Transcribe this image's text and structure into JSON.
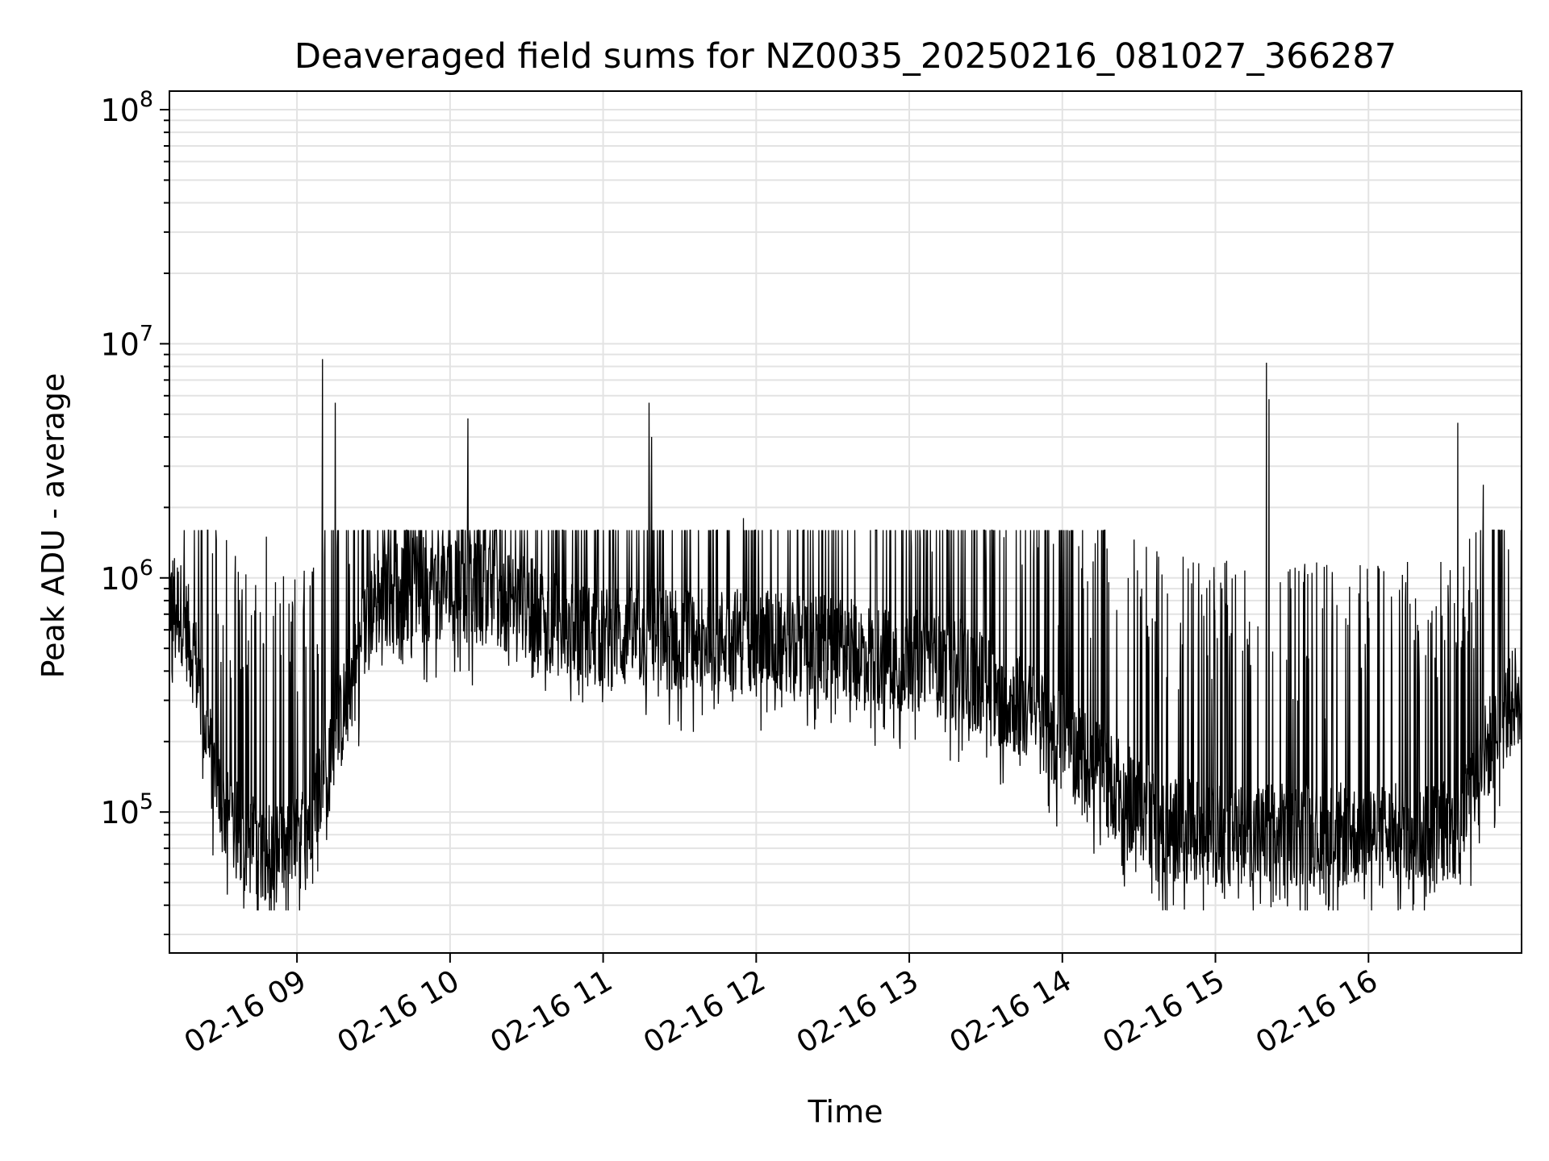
{
  "chart_data": {
    "type": "line",
    "title": "Deaveraged field sums for NZ0035_20250216_081027_366287",
    "xlabel": "Time",
    "ylabel": "Peak ADU - average",
    "y_scale": "log",
    "ylim": [
      25000,
      120000000
    ],
    "y_ticks": [
      {
        "value": 100000,
        "base": "10",
        "exp": "5"
      },
      {
        "value": 1000000,
        "base": "10",
        "exp": "6"
      },
      {
        "value": 10000000,
        "base": "10",
        "exp": "7"
      },
      {
        "value": 100000000,
        "base": "10",
        "exp": "8"
      }
    ],
    "xlim": [
      "2025-02-16T08:10",
      "2025-02-16T17:00"
    ],
    "x_ticks": [
      {
        "time": "2025-02-16T09:00",
        "label": "02-16 09"
      },
      {
        "time": "2025-02-16T10:00",
        "label": "02-16 10"
      },
      {
        "time": "2025-02-16T11:00",
        "label": "02-16 11"
      },
      {
        "time": "2025-02-16T12:00",
        "label": "02-16 12"
      },
      {
        "time": "2025-02-16T13:00",
        "label": "02-16 13"
      },
      {
        "time": "2025-02-16T14:00",
        "label": "02-16 14"
      },
      {
        "time": "2025-02-16T15:00",
        "label": "02-16 15"
      },
      {
        "time": "2025-02-16T16:00",
        "label": "02-16 16"
      }
    ],
    "grid": true,
    "line_color": "#000000",
    "series": [
      {
        "baseline": {
          "time": [
            "2025-02-16T08:10",
            "2025-02-16T08:15",
            "2025-02-16T08:20",
            "2025-02-16T08:25",
            "2025-02-16T08:30",
            "2025-02-16T08:35",
            "2025-02-16T08:40",
            "2025-02-16T08:45",
            "2025-02-16T08:50",
            "2025-02-16T08:55",
            "2025-02-16T09:00",
            "2025-02-16T09:15",
            "2025-02-16T09:30",
            "2025-02-16T09:45",
            "2025-02-16T10:00",
            "2025-02-16T10:15",
            "2025-02-16T10:30",
            "2025-02-16T10:45",
            "2025-02-16T11:00",
            "2025-02-16T11:30",
            "2025-02-16T12:00",
            "2025-02-16T12:30",
            "2025-02-16T13:00",
            "2025-02-16T13:20",
            "2025-02-16T13:40",
            "2025-02-16T13:50",
            "2025-02-16T14:00",
            "2025-02-16T14:20",
            "2025-02-16T14:40",
            "2025-02-16T15:00",
            "2025-02-16T15:30",
            "2025-02-16T16:00",
            "2025-02-16T16:20",
            "2025-02-16T16:35",
            "2025-02-16T16:45",
            "2025-02-16T17:00"
          ],
          "value": [
            850000,
            700000,
            450000,
            200000,
            110000,
            85000,
            75000,
            70000,
            70000,
            70000,
            70000,
            200000,
            800000,
            900000,
            900000,
            850000,
            750000,
            600000,
            550000,
            550000,
            550000,
            500000,
            450000,
            400000,
            300000,
            250000,
            200000,
            130000,
            85000,
            80000,
            80000,
            80000,
            80000,
            85000,
            170000,
            350000
          ]
        },
        "spikes": [
          {
            "time": "2025-02-16T08:48",
            "value": 1500000
          },
          {
            "time": "2025-02-16T09:10",
            "value": 8600000
          },
          {
            "time": "2025-02-16T09:15",
            "value": 5600000
          },
          {
            "time": "2025-02-16T10:07",
            "value": 4800000
          },
          {
            "time": "2025-02-16T11:18",
            "value": 5600000
          },
          {
            "time": "2025-02-16T11:19",
            "value": 4000000
          },
          {
            "time": "2025-02-16T11:55",
            "value": 1800000
          },
          {
            "time": "2025-02-16T15:20",
            "value": 8300000
          },
          {
            "time": "2025-02-16T15:21",
            "value": 5800000
          },
          {
            "time": "2025-02-16T16:35",
            "value": 4600000
          },
          {
            "time": "2025-02-16T16:45",
            "value": 2500000
          }
        ]
      }
    ]
  }
}
